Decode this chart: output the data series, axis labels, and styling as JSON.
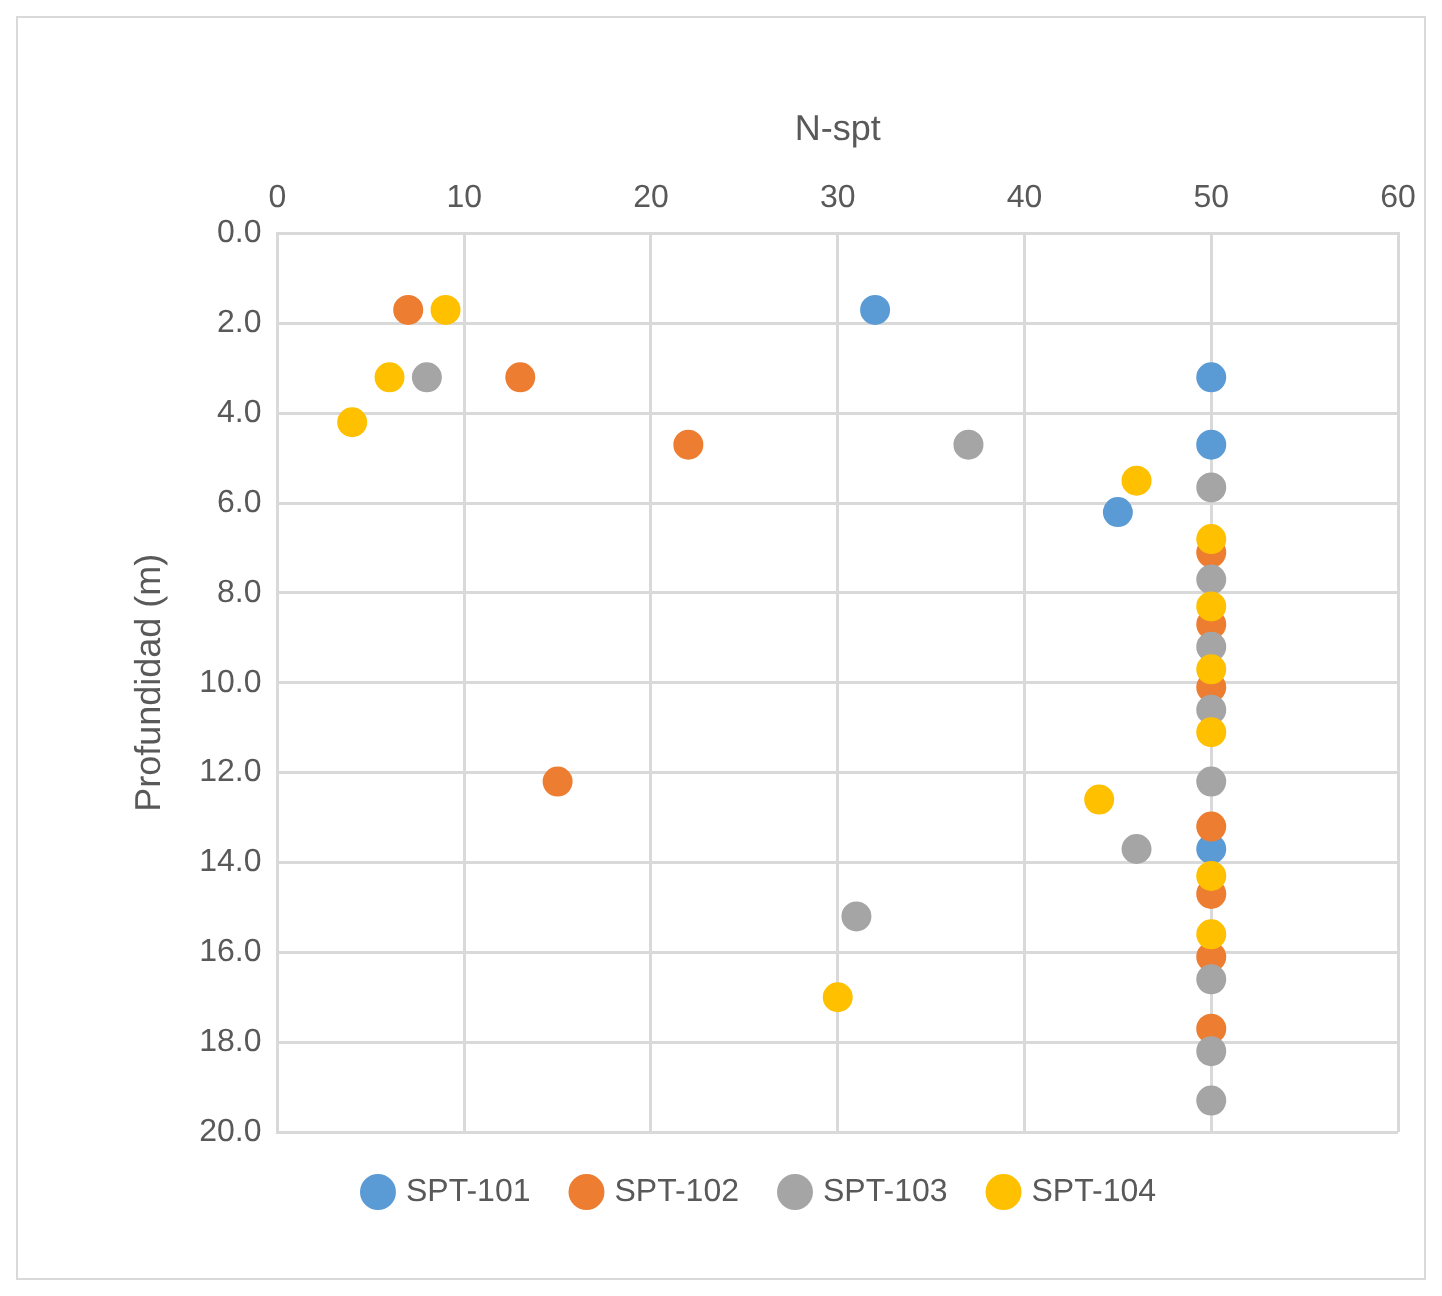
{
  "chart_data": {
    "type": "scatter",
    "xlabel": "N-spt",
    "ylabel": "Profundidad (m)",
    "xlim": [
      0,
      60
    ],
    "xticks": [
      0,
      10,
      20,
      30,
      40,
      50,
      60
    ],
    "ylim": [
      20,
      0
    ],
    "yticks": [
      {
        "value": 0,
        "label": "0.0"
      },
      {
        "value": 2,
        "label": "2.0"
      },
      {
        "value": 4,
        "label": "4.0"
      },
      {
        "value": 6,
        "label": "6.0"
      },
      {
        "value": 8,
        "label": "8.0"
      },
      {
        "value": 10,
        "label": "10.0"
      },
      {
        "value": 12,
        "label": "12.0"
      },
      {
        "value": 14,
        "label": "14.0"
      },
      {
        "value": 16,
        "label": "16.0"
      },
      {
        "value": 18,
        "label": "18.0"
      },
      {
        "value": 20,
        "label": "20.0"
      }
    ],
    "grid": true,
    "legend": "bottom",
    "marker": "circle",
    "series": [
      {
        "name": "SPT-101",
        "color": "#5b9bd5",
        "x": [
          32,
          50,
          50,
          45,
          50
        ],
        "values": [
          1.7,
          3.2,
          4.7,
          6.2,
          13.7
        ]
      },
      {
        "name": "SPT-102",
        "color": "#ed7d31",
        "x": [
          7,
          13,
          22,
          50,
          50,
          50,
          15,
          50,
          50,
          50,
          50
        ],
        "values": [
          1.7,
          3.2,
          4.7,
          7.1,
          8.7,
          10.1,
          12.2,
          13.2,
          14.7,
          16.1,
          17.7
        ]
      },
      {
        "name": "SPT-103",
        "color": "#a5a5a5",
        "x": [
          8,
          37,
          50,
          50,
          50,
          50,
          50,
          46,
          31,
          50,
          50,
          50
        ],
        "values": [
          3.2,
          4.7,
          5.65,
          7.7,
          9.2,
          10.6,
          12.2,
          13.7,
          15.2,
          16.6,
          18.2,
          19.3
        ]
      },
      {
        "name": "SPT-104",
        "color": "#ffc000",
        "x": [
          9,
          6,
          4,
          46,
          50,
          50,
          50,
          50,
          44,
          50,
          50,
          30
        ],
        "values": [
          1.7,
          3.2,
          4.2,
          5.5,
          6.8,
          8.3,
          9.7,
          11.1,
          12.6,
          14.3,
          15.6,
          17.0
        ]
      }
    ]
  }
}
